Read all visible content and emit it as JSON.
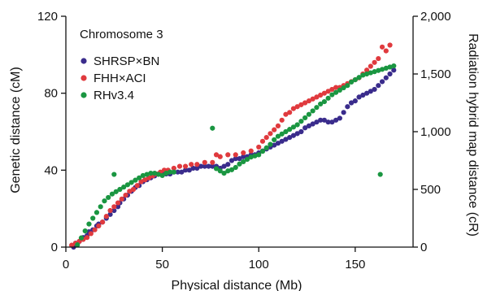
{
  "chart_data": {
    "type": "scatter",
    "annotation": "Chromosome 3",
    "xlabel": "Physical distance (Mb)",
    "ylabel": "Genetic distance (cM)",
    "y2label": "Radiation hybrid map distance (cR)",
    "xlim": [
      0,
      180
    ],
    "ylim": [
      0,
      120
    ],
    "y2lim": [
      0,
      2000
    ],
    "xticks": [
      "0",
      "50",
      "100",
      "150"
    ],
    "xtick_values": [
      0,
      50,
      100,
      150
    ],
    "yticks": [
      "0",
      "40",
      "80",
      "120"
    ],
    "ytick_values": [
      0,
      40,
      80,
      120
    ],
    "y2ticks": [
      "0",
      "500",
      "1,000",
      "1,500",
      "2,000"
    ],
    "y2tick_values": [
      0,
      500,
      1000,
      1500,
      2000
    ],
    "legend_position": "upper-left",
    "series": [
      {
        "name": "SHRSP×BN",
        "color": "#3a2c8c",
        "axis": "left",
        "points": [
          [
            4,
            0
          ],
          [
            5,
            2
          ],
          [
            7,
            3
          ],
          [
            9,
            5
          ],
          [
            11,
            6
          ],
          [
            12,
            8
          ],
          [
            14,
            9
          ],
          [
            16,
            11
          ],
          [
            17,
            12
          ],
          [
            19,
            13
          ],
          [
            21,
            15
          ],
          [
            23,
            17
          ],
          [
            25,
            19
          ],
          [
            27,
            21
          ],
          [
            28,
            23
          ],
          [
            30,
            25
          ],
          [
            32,
            27
          ],
          [
            34,
            29
          ],
          [
            36,
            31
          ],
          [
            38,
            32
          ],
          [
            40,
            34
          ],
          [
            42,
            35
          ],
          [
            44,
            36
          ],
          [
            46,
            37
          ],
          [
            48,
            38
          ],
          [
            50,
            38
          ],
          [
            52,
            38
          ],
          [
            54,
            38
          ],
          [
            56,
            39
          ],
          [
            58,
            39
          ],
          [
            60,
            39
          ],
          [
            62,
            40
          ],
          [
            64,
            40
          ],
          [
            66,
            41
          ],
          [
            68,
            41
          ],
          [
            70,
            42
          ],
          [
            72,
            42
          ],
          [
            74,
            42
          ],
          [
            76,
            42
          ],
          [
            78,
            42
          ],
          [
            80,
            41
          ],
          [
            82,
            42
          ],
          [
            84,
            43
          ],
          [
            86,
            45
          ],
          [
            88,
            46
          ],
          [
            90,
            46
          ],
          [
            92,
            47
          ],
          [
            94,
            47
          ],
          [
            96,
            48
          ],
          [
            98,
            48
          ],
          [
            100,
            49
          ],
          [
            102,
            50
          ],
          [
            104,
            51
          ],
          [
            106,
            52
          ],
          [
            108,
            53
          ],
          [
            110,
            54
          ],
          [
            112,
            55
          ],
          [
            114,
            56
          ],
          [
            116,
            57
          ],
          [
            118,
            58
          ],
          [
            120,
            59
          ],
          [
            122,
            60
          ],
          [
            124,
            62
          ],
          [
            126,
            63
          ],
          [
            128,
            64
          ],
          [
            130,
            65
          ],
          [
            132,
            66
          ],
          [
            134,
            66
          ],
          [
            136,
            65
          ],
          [
            138,
            65
          ],
          [
            140,
            66
          ],
          [
            142,
            67
          ],
          [
            144,
            70
          ],
          [
            146,
            73
          ],
          [
            148,
            75
          ],
          [
            150,
            76
          ],
          [
            152,
            78
          ],
          [
            154,
            79
          ],
          [
            156,
            80
          ],
          [
            158,
            81
          ],
          [
            160,
            82
          ],
          [
            162,
            84
          ],
          [
            164,
            86
          ],
          [
            166,
            88
          ],
          [
            168,
            90
          ],
          [
            170,
            92
          ]
        ]
      },
      {
        "name": "FHH×ACI",
        "color": "#e03a3e",
        "axis": "left",
        "points": [
          [
            3,
            1
          ],
          [
            5,
            2
          ],
          [
            7,
            3
          ],
          [
            9,
            4
          ],
          [
            11,
            5
          ],
          [
            13,
            7
          ],
          [
            15,
            9
          ],
          [
            17,
            11
          ],
          [
            19,
            13
          ],
          [
            21,
            16
          ],
          [
            23,
            19
          ],
          [
            25,
            21
          ],
          [
            27,
            23
          ],
          [
            29,
            25
          ],
          [
            31,
            27
          ],
          [
            33,
            29
          ],
          [
            35,
            30
          ],
          [
            37,
            32
          ],
          [
            39,
            34
          ],
          [
            41,
            35
          ],
          [
            43,
            36
          ],
          [
            45,
            37
          ],
          [
            47,
            38
          ],
          [
            49,
            39
          ],
          [
            51,
            40
          ],
          [
            53,
            40
          ],
          [
            56,
            41
          ],
          [
            59,
            42
          ],
          [
            62,
            42
          ],
          [
            65,
            43
          ],
          [
            68,
            43
          ],
          [
            72,
            44
          ],
          [
            76,
            44
          ],
          [
            78,
            48
          ],
          [
            80,
            47
          ],
          [
            84,
            48
          ],
          [
            88,
            48
          ],
          [
            92,
            49
          ],
          [
            96,
            50
          ],
          [
            100,
            52
          ],
          [
            102,
            55
          ],
          [
            104,
            57
          ],
          [
            106,
            59
          ],
          [
            108,
            61
          ],
          [
            110,
            63
          ],
          [
            112,
            66
          ],
          [
            114,
            69
          ],
          [
            116,
            70
          ],
          [
            118,
            72
          ],
          [
            120,
            73
          ],
          [
            122,
            74
          ],
          [
            124,
            75
          ],
          [
            126,
            76
          ],
          [
            128,
            77
          ],
          [
            130,
            78
          ],
          [
            132,
            79
          ],
          [
            134,
            80
          ],
          [
            136,
            81
          ],
          [
            138,
            82
          ],
          [
            140,
            83
          ],
          [
            142,
            83
          ],
          [
            144,
            84
          ],
          [
            146,
            85
          ],
          [
            148,
            86
          ],
          [
            150,
            87
          ],
          [
            152,
            88
          ],
          [
            154,
            90
          ],
          [
            156,
            92
          ],
          [
            158,
            94
          ],
          [
            160,
            96
          ],
          [
            162,
            98
          ],
          [
            164,
            104
          ],
          [
            166,
            102
          ],
          [
            168,
            105
          ]
        ]
      },
      {
        "name": "RHv3.4",
        "color": "#1a9641",
        "axis": "right",
        "points": [
          [
            6,
            20
          ],
          [
            8,
            80
          ],
          [
            10,
            140
          ],
          [
            12,
            200
          ],
          [
            14,
            250
          ],
          [
            16,
            300
          ],
          [
            18,
            350
          ],
          [
            20,
            400
          ],
          [
            22,
            430
          ],
          [
            24,
            460
          ],
          [
            25,
            630
          ],
          [
            26,
            480
          ],
          [
            28,
            500
          ],
          [
            30,
            520
          ],
          [
            32,
            540
          ],
          [
            34,
            560
          ],
          [
            36,
            580
          ],
          [
            38,
            600
          ],
          [
            40,
            620
          ],
          [
            42,
            630
          ],
          [
            44,
            640
          ],
          [
            46,
            640
          ],
          [
            48,
            630
          ],
          [
            50,
            620
          ],
          [
            52,
            640
          ],
          [
            54,
            650
          ],
          [
            56,
            650
          ],
          [
            76,
            1030
          ],
          [
            78,
            680
          ],
          [
            80,
            660
          ],
          [
            82,
            640
          ],
          [
            84,
            660
          ],
          [
            86,
            670
          ],
          [
            88,
            690
          ],
          [
            90,
            720
          ],
          [
            92,
            740
          ],
          [
            94,
            760
          ],
          [
            96,
            780
          ],
          [
            98,
            790
          ],
          [
            100,
            800
          ],
          [
            102,
            830
          ],
          [
            104,
            860
          ],
          [
            106,
            890
          ],
          [
            108,
            930
          ],
          [
            110,
            960
          ],
          [
            112,
            980
          ],
          [
            114,
            1000
          ],
          [
            116,
            1020
          ],
          [
            118,
            1040
          ],
          [
            120,
            1060
          ],
          [
            122,
            1090
          ],
          [
            124,
            1120
          ],
          [
            126,
            1150
          ],
          [
            128,
            1180
          ],
          [
            130,
            1210
          ],
          [
            132,
            1240
          ],
          [
            134,
            1260
          ],
          [
            136,
            1290
          ],
          [
            138,
            1320
          ],
          [
            140,
            1340
          ],
          [
            142,
            1360
          ],
          [
            144,
            1380
          ],
          [
            146,
            1400
          ],
          [
            148,
            1430
          ],
          [
            150,
            1450
          ],
          [
            152,
            1470
          ],
          [
            154,
            1490
          ],
          [
            156,
            1500
          ],
          [
            158,
            1510
          ],
          [
            160,
            1520
          ],
          [
            162,
            1530
          ],
          [
            163,
            630
          ],
          [
            164,
            1540
          ],
          [
            166,
            1550
          ],
          [
            168,
            1560
          ],
          [
            170,
            1570
          ]
        ]
      }
    ]
  }
}
